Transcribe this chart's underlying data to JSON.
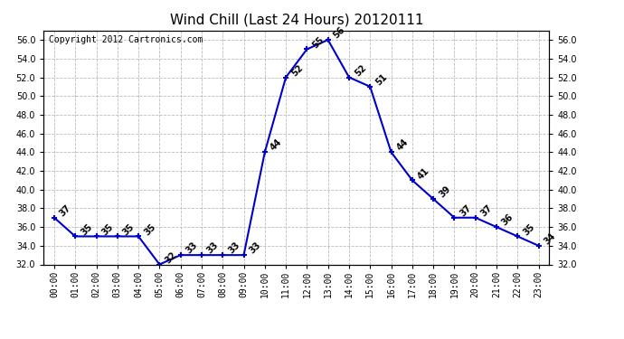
{
  "title": "Wind Chill (Last 24 Hours) 20120111",
  "copyright": "Copyright 2012 Cartronics.com",
  "hours": [
    0,
    1,
    2,
    3,
    4,
    5,
    6,
    7,
    8,
    9,
    10,
    11,
    12,
    13,
    14,
    15,
    16,
    17,
    18,
    19,
    20,
    21,
    22,
    23
  ],
  "values": [
    37,
    35,
    35,
    35,
    35,
    32,
    33,
    33,
    33,
    33,
    44,
    52,
    55,
    56,
    52,
    51,
    44,
    41,
    39,
    37,
    37,
    36,
    35,
    34
  ],
  "ylim_min": 32.0,
  "ylim_max": 57.0,
  "line_color": "#0000cc",
  "marker_color": "#0000cc",
  "grid_color": "#bbbbbb",
  "bg_color": "#ffffff",
  "title_fontsize": 11,
  "label_fontsize": 7,
  "annotation_fontsize": 7,
  "copyright_fontsize": 7,
  "yticks": [
    32.0,
    34.0,
    36.0,
    38.0,
    40.0,
    42.0,
    44.0,
    46.0,
    48.0,
    50.0,
    52.0,
    54.0,
    56.0
  ]
}
